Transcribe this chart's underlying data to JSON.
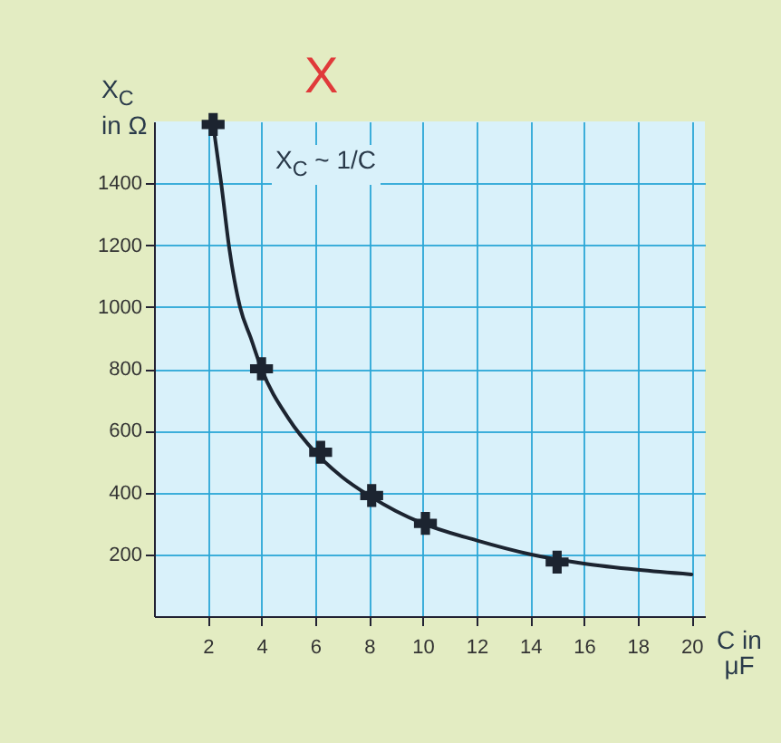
{
  "chart_data": {
    "type": "line",
    "xlabel": "C in μF",
    "ylabel": "X$_{C}$ in Ω",
    "annotations": [
      "X$_{C}$ ~ 1/C",
      "X"
    ],
    "xlim": [
      0,
      20.5
    ],
    "ylim": [
      0,
      1600
    ],
    "xticks": [
      2,
      4,
      6,
      8,
      10,
      12,
      14,
      16,
      18,
      20
    ],
    "yticks": [
      200,
      400,
      600,
      800,
      1000,
      1200,
      1400
    ],
    "grid": true,
    "series": [
      {
        "color": "#1c2430",
        "marker": "none",
        "x": [
          2.2,
          2.5,
          2.8,
          3.2,
          3.6,
          4,
          5,
          6,
          7,
          8,
          9,
          10,
          12,
          14,
          16,
          18,
          20
        ],
        "values": [
          1590,
          1400,
          1190,
          1000,
          900,
          800,
          640,
          530,
          450,
          390,
          340,
          300,
          245,
          200,
          170,
          150,
          135
        ]
      },
      {
        "type": "scatter",
        "color": "#1c2430",
        "marker": "cross",
        "x": [
          2.2,
          4,
          6.2,
          8.1,
          10.1,
          15
        ],
        "values": [
          1590,
          800,
          530,
          390,
          300,
          175
        ]
      }
    ]
  }
}
